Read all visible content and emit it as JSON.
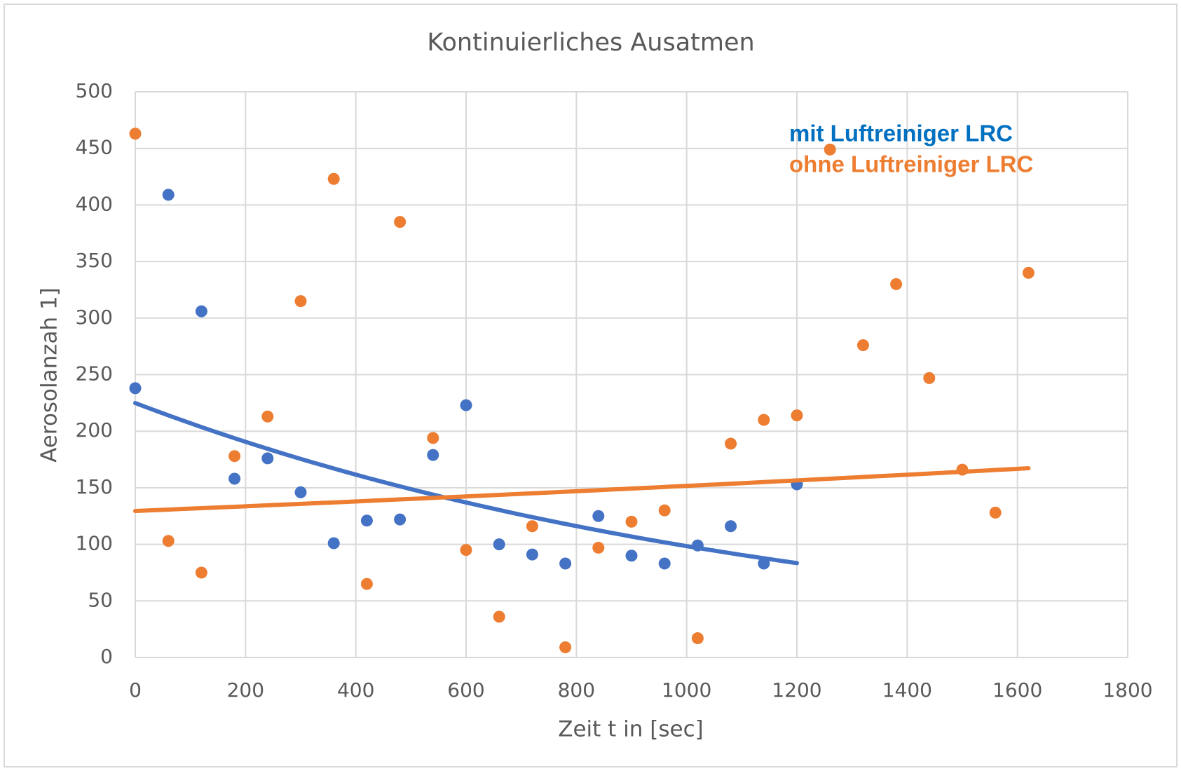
{
  "chart_data": {
    "type": "scatter",
    "title": "Kontinuierliches Ausatmen",
    "x_label": "Zeit t in [sec]",
    "y_label": "Aerosolanzah 1]",
    "xlim": [
      0,
      1800
    ],
    "xticks": [
      0,
      200,
      400,
      600,
      800,
      1000,
      1200,
      1400,
      1600,
      1800
    ],
    "ylim": [
      0,
      500
    ],
    "yticks": [
      0,
      50,
      100,
      150,
      200,
      250,
      300,
      350,
      400,
      450,
      500
    ],
    "grid": true,
    "trendline": "exponential",
    "legend": "upper right",
    "series": [
      {
        "name": "mit Luftreiniger LRC",
        "color": "#4472c4",
        "label_color": "#0070c0",
        "x": [
          0,
          60,
          120,
          180,
          240,
          300,
          360,
          420,
          480,
          540,
          600,
          660,
          720,
          780,
          840,
          900,
          960,
          1020,
          1080,
          1140,
          1200
        ],
        "values": [
          238,
          409,
          306,
          158,
          176,
          146,
          101,
          121,
          122,
          179,
          223,
          100,
          91,
          83,
          125,
          90,
          83,
          99,
          116,
          83,
          153
        ]
      },
      {
        "name": "ohne Luftreiniger LRC",
        "color": "#ed7d31",
        "label_color": "#ed7d31",
        "x": [
          0,
          60,
          120,
          180,
          240,
          300,
          360,
          420,
          480,
          540,
          600,
          660,
          720,
          780,
          840,
          900,
          960,
          1020,
          1080,
          1140,
          1200,
          1260,
          1320,
          1380,
          1440,
          1500,
          1560,
          1620
        ],
        "values": [
          463,
          103,
          75,
          178,
          213,
          315,
          423,
          65,
          385,
          194,
          95,
          36,
          116,
          9,
          97,
          120,
          130,
          17,
          189,
          210,
          214,
          449,
          276,
          330,
          247,
          166,
          128,
          340
        ]
      }
    ]
  }
}
